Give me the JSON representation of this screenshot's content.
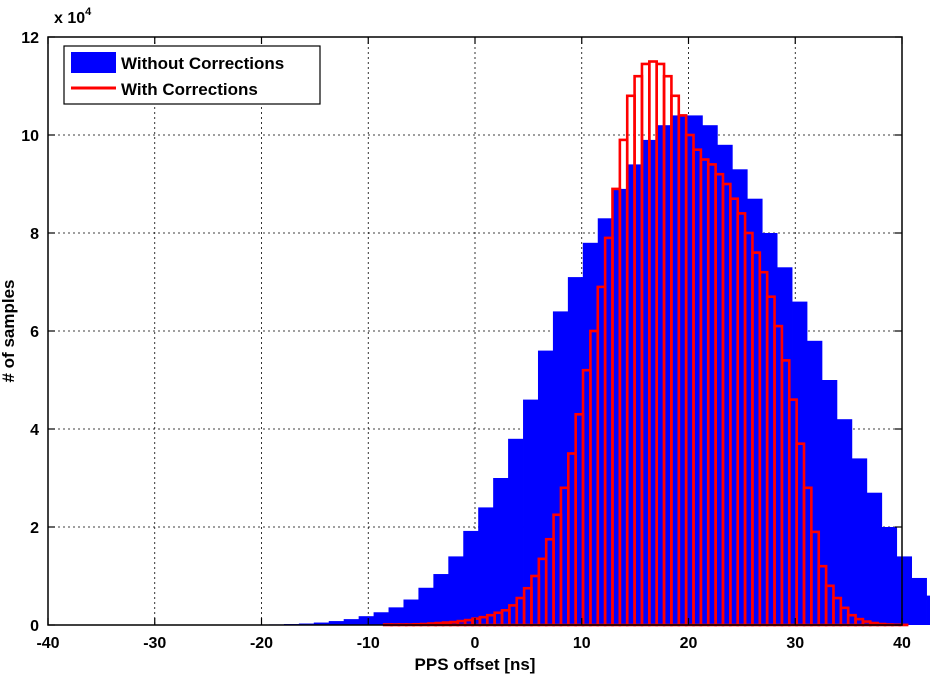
{
  "chart_data": {
    "type": "bar",
    "chart_style": "overlaid histograms",
    "xlabel": "PPS offset [ns]",
    "ylabel": "# of samples",
    "y_exponent_label": "x 10",
    "y_exponent_power": "4",
    "xlim": [
      -40,
      40
    ],
    "ylim": [
      0,
      12
    ],
    "y_multiplier": 10000,
    "xticks": [
      "-40",
      "-30",
      "-20",
      "-10",
      "0",
      "10",
      "20",
      "30",
      "40"
    ],
    "yticks": [
      "0",
      "2",
      "4",
      "6",
      "8",
      "10",
      "12"
    ],
    "grid": true,
    "legend_position": "top-left",
    "series": [
      {
        "name": "Without Corrections",
        "style": "filled",
        "color": "#0000ff",
        "bin_width": 1.4,
        "bin_start": -23.5,
        "values": [
          0.003,
          0.005,
          0.008,
          0.012,
          0.02,
          0.03,
          0.05,
          0.08,
          0.12,
          0.18,
          0.26,
          0.36,
          0.52,
          0.76,
          1.04,
          1.4,
          1.92,
          2.4,
          3.0,
          3.8,
          4.6,
          5.6,
          6.4,
          7.1,
          7.8,
          8.3,
          8.9,
          9.4,
          9.9,
          10.2,
          10.4,
          10.4,
          10.2,
          9.8,
          9.3,
          8.7,
          8.0,
          7.3,
          6.6,
          5.8,
          5.0,
          4.2,
          3.4,
          2.7,
          2.0,
          1.4,
          0.96,
          0.6,
          0.32,
          0.16,
          0.06,
          0.02
        ]
      },
      {
        "name": "With Corrections",
        "style": "outline",
        "color": "#ff0000",
        "bin_width": 0.69,
        "bin_start": -23.0,
        "values": [
          0,
          0,
          0,
          0,
          0,
          0,
          0,
          0,
          0,
          0,
          0,
          0,
          0,
          0,
          0,
          0,
          0,
          0,
          0,
          0,
          0,
          0.01,
          0.01,
          0.01,
          0.01,
          0.015,
          0.02,
          0.03,
          0.04,
          0.05,
          0.06,
          0.08,
          0.1,
          0.13,
          0.16,
          0.2,
          0.25,
          0.3,
          0.4,
          0.55,
          0.75,
          1.0,
          1.35,
          1.75,
          2.25,
          2.8,
          3.5,
          4.3,
          5.2,
          6.0,
          6.9,
          7.9,
          8.9,
          9.9,
          10.8,
          11.2,
          11.45,
          11.5,
          11.45,
          11.2,
          10.8,
          10.4,
          10.0,
          9.7,
          9.5,
          9.4,
          9.2,
          9.0,
          8.7,
          8.4,
          8.0,
          7.6,
          7.2,
          6.7,
          6.1,
          5.4,
          4.6,
          3.7,
          2.8,
          1.9,
          1.2,
          0.8,
          0.55,
          0.35,
          0.2,
          0.12,
          0.07,
          0.04,
          0.02,
          0.01,
          0.005,
          0.003
        ]
      }
    ]
  }
}
